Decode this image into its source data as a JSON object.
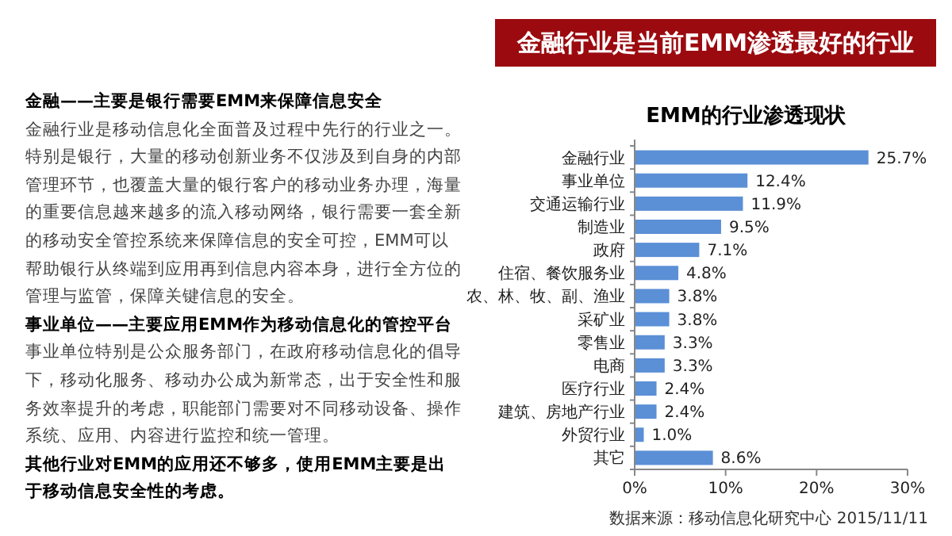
{
  "chart_data": {
    "type": "bar",
    "orientation": "horizontal",
    "subtitle": "金融行业是当前EMM渗透最好的行业",
    "title": "EMM的行业渗透现状",
    "categories": [
      "金融行业",
      "事业单位",
      "交通运输行业",
      "制造业",
      "政府",
      "住宿、餐饮服务业",
      "农、林、牧、副、渔业",
      "采矿业",
      "零售业",
      "电商",
      "医疗行业",
      "建筑、房地产行业",
      "外贸行业",
      "其它"
    ],
    "values": [
      25.7,
      12.4,
      11.9,
      9.5,
      7.1,
      4.8,
      3.8,
      3.8,
      3.3,
      3.3,
      2.4,
      2.4,
      1.0,
      8.6
    ],
    "value_labels": [
      "25.7%",
      "12.4%",
      "11.9%",
      "9.5%",
      "7.1%",
      "4.8%",
      "3.8%",
      "3.8%",
      "3.3%",
      "3.3%",
      "2.4%",
      "2.4%",
      "1.0%",
      "8.6%"
    ],
    "color": "#5b8fd6",
    "xlim": [
      0,
      30
    ],
    "xticks": [
      {
        "value": 0,
        "label": "0%"
      },
      {
        "value": 10,
        "label": "10%"
      },
      {
        "value": 20,
        "label": "20%"
      },
      {
        "value": 30,
        "label": "30%"
      }
    ],
    "grid": false,
    "legend": false,
    "annotations": [
      "金融——主要是银行需要EMM来保障信息安全",
      "金融行业是移动信息化全面普及过程中先行的行业之一。特别是银行，大量的移动创新业务不仅涉及到自身的内部管理环节，也覆盖大量的银行客户的移动业务办理，海量的重要信息越来越多的流入移动网络，银行需要一套全新的移动安全管控系统来保障信息的安全可控，EMM可以帮助银行从终端到应用再到信息内容本身，进行全方位的管理与监管，保障关键信息的安全。",
      "事业单位——主要应用EMM作为移动信息化的管控平台",
      "事业单位特别是公众服务部门，在政府移动信息化的倡导下，移动化服务、移动办公成为新常态，出于安全性和服务效率提升的考虑，职能部门需要对不同移动设备、操作系统、应用、内容进行监控和统一管理。",
      "其他行业对EMM的应用还不够多，使用EMM主要是出于移动信息安全性的考虑。",
      "数据来源：移动信息化研究中心 2015/11/11"
    ]
  }
}
